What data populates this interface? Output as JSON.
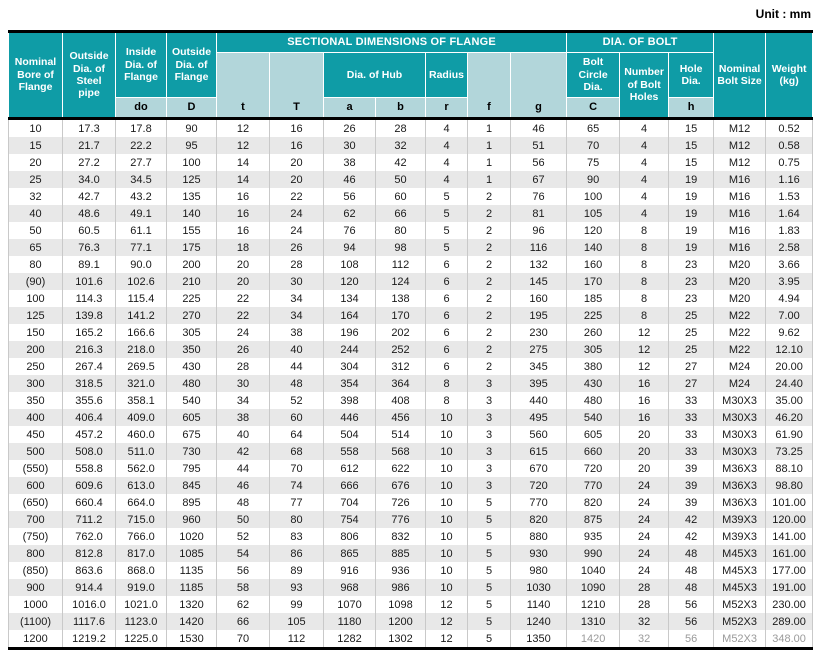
{
  "unit_label": "Unit : mm",
  "colors": {
    "header_dark_teal": "#0f9ca6",
    "header_light_teal": "#b2d6da",
    "row_alternate_gray": "#e8e8e8",
    "grid_line": "#c9c9c9",
    "rule_black": "#000000"
  },
  "header": {
    "nominal_bore": "Nominal Bore of Flange",
    "outside_dia_steel_pipe": "Outside Dia. of Steel pipe",
    "inside_dia_flange": "Inside Dia. of Flange",
    "outside_dia_flange": "Outside Dia. of Flange",
    "sectional_group": "SECTIONAL DIMENSIONS OF FLANGE",
    "dia_of_bolt_group": "DIA. OF BOLT",
    "dia_of_hub": "Dia. of Hub",
    "radius": "Radius",
    "bolt_circle_dia": "Bolt Circle Dia.",
    "number_of_bolt_holes": "Number of Bolt Holes",
    "hole_dia": "Hole Dia.",
    "nominal_bolt_size": "Nominal Bolt Size",
    "weight_kg": "Weight (kg)",
    "sub": {
      "do": "do",
      "D": "D",
      "t": "t",
      "T": "T",
      "a": "a",
      "b": "b",
      "r": "r",
      "f": "f",
      "g": "g",
      "C": "C",
      "h": "h"
    }
  },
  "columns": [
    "nominal_bore",
    "outside_dia_steel_pipe",
    "do",
    "D",
    "t",
    "T",
    "a",
    "b",
    "r",
    "f",
    "g",
    "C",
    "number_of_bolt_holes",
    "h",
    "nominal_bolt_size",
    "weight_kg"
  ],
  "rows": [
    [
      "10",
      "17.3",
      "17.8",
      "90",
      "12",
      "16",
      "26",
      "28",
      "4",
      "1",
      "46",
      "65",
      "4",
      "15",
      "M12",
      "0.52"
    ],
    [
      "15",
      "21.7",
      "22.2",
      "95",
      "12",
      "16",
      "30",
      "32",
      "4",
      "1",
      "51",
      "70",
      "4",
      "15",
      "M12",
      "0.58"
    ],
    [
      "20",
      "27.2",
      "27.7",
      "100",
      "14",
      "20",
      "38",
      "42",
      "4",
      "1",
      "56",
      "75",
      "4",
      "15",
      "M12",
      "0.75"
    ],
    [
      "25",
      "34.0",
      "34.5",
      "125",
      "14",
      "20",
      "46",
      "50",
      "4",
      "1",
      "67",
      "90",
      "4",
      "19",
      "M16",
      "1.16"
    ],
    [
      "32",
      "42.7",
      "43.2",
      "135",
      "16",
      "22",
      "56",
      "60",
      "5",
      "2",
      "76",
      "100",
      "4",
      "19",
      "M16",
      "1.53"
    ],
    [
      "40",
      "48.6",
      "49.1",
      "140",
      "16",
      "24",
      "62",
      "66",
      "5",
      "2",
      "81",
      "105",
      "4",
      "19",
      "M16",
      "1.64"
    ],
    [
      "50",
      "60.5",
      "61.1",
      "155",
      "16",
      "24",
      "76",
      "80",
      "5",
      "2",
      "96",
      "120",
      "8",
      "19",
      "M16",
      "1.83"
    ],
    [
      "65",
      "76.3",
      "77.1",
      "175",
      "18",
      "26",
      "94",
      "98",
      "5",
      "2",
      "116",
      "140",
      "8",
      "19",
      "M16",
      "2.58"
    ],
    [
      "80",
      "89.1",
      "90.0",
      "200",
      "20",
      "28",
      "108",
      "112",
      "6",
      "2",
      "132",
      "160",
      "8",
      "23",
      "M20",
      "3.66"
    ],
    [
      "(90)",
      "101.6",
      "102.6",
      "210",
      "20",
      "30",
      "120",
      "124",
      "6",
      "2",
      "145",
      "170",
      "8",
      "23",
      "M20",
      "3.95"
    ],
    [
      "100",
      "114.3",
      "115.4",
      "225",
      "22",
      "34",
      "134",
      "138",
      "6",
      "2",
      "160",
      "185",
      "8",
      "23",
      "M20",
      "4.94"
    ],
    [
      "125",
      "139.8",
      "141.2",
      "270",
      "22",
      "34",
      "164",
      "170",
      "6",
      "2",
      "195",
      "225",
      "8",
      "25",
      "M22",
      "7.00"
    ],
    [
      "150",
      "165.2",
      "166.6",
      "305",
      "24",
      "38",
      "196",
      "202",
      "6",
      "2",
      "230",
      "260",
      "12",
      "25",
      "M22",
      "9.62"
    ],
    [
      "200",
      "216.3",
      "218.0",
      "350",
      "26",
      "40",
      "244",
      "252",
      "6",
      "2",
      "275",
      "305",
      "12",
      "25",
      "M22",
      "12.10"
    ],
    [
      "250",
      "267.4",
      "269.5",
      "430",
      "28",
      "44",
      "304",
      "312",
      "6",
      "2",
      "345",
      "380",
      "12",
      "27",
      "M24",
      "20.00"
    ],
    [
      "300",
      "318.5",
      "321.0",
      "480",
      "30",
      "48",
      "354",
      "364",
      "8",
      "3",
      "395",
      "430",
      "16",
      "27",
      "M24",
      "24.40"
    ],
    [
      "350",
      "355.6",
      "358.1",
      "540",
      "34",
      "52",
      "398",
      "408",
      "8",
      "3",
      "440",
      "480",
      "16",
      "33",
      "M30X3",
      "35.00"
    ],
    [
      "400",
      "406.4",
      "409.0",
      "605",
      "38",
      "60",
      "446",
      "456",
      "10",
      "3",
      "495",
      "540",
      "16",
      "33",
      "M30X3",
      "46.20"
    ],
    [
      "450",
      "457.2",
      "460.0",
      "675",
      "40",
      "64",
      "504",
      "514",
      "10",
      "3",
      "560",
      "605",
      "20",
      "33",
      "M30X3",
      "61.90"
    ],
    [
      "500",
      "508.0",
      "511.0",
      "730",
      "42",
      "68",
      "558",
      "568",
      "10",
      "3",
      "615",
      "660",
      "20",
      "33",
      "M30X3",
      "73.25"
    ],
    [
      "(550)",
      "558.8",
      "562.0",
      "795",
      "44",
      "70",
      "612",
      "622",
      "10",
      "3",
      "670",
      "720",
      "20",
      "39",
      "M36X3",
      "88.10"
    ],
    [
      "600",
      "609.6",
      "613.0",
      "845",
      "46",
      "74",
      "666",
      "676",
      "10",
      "3",
      "720",
      "770",
      "24",
      "39",
      "M36X3",
      "98.80"
    ],
    [
      "(650)",
      "660.4",
      "664.0",
      "895",
      "48",
      "77",
      "704",
      "726",
      "10",
      "5",
      "770",
      "820",
      "24",
      "39",
      "M36X3",
      "101.00"
    ],
    [
      "700",
      "711.2",
      "715.0",
      "960",
      "50",
      "80",
      "754",
      "776",
      "10",
      "5",
      "820",
      "875",
      "24",
      "42",
      "M39X3",
      "120.00"
    ],
    [
      "(750)",
      "762.0",
      "766.0",
      "1020",
      "52",
      "83",
      "806",
      "832",
      "10",
      "5",
      "880",
      "935",
      "24",
      "42",
      "M39X3",
      "141.00"
    ],
    [
      "800",
      "812.8",
      "817.0",
      "1085",
      "54",
      "86",
      "865",
      "885",
      "10",
      "5",
      "930",
      "990",
      "24",
      "48",
      "M45X3",
      "161.00"
    ],
    [
      "(850)",
      "863.6",
      "868.0",
      "1135",
      "56",
      "89",
      "916",
      "936",
      "10",
      "5",
      "980",
      "1040",
      "24",
      "48",
      "M45X3",
      "177.00"
    ],
    [
      "900",
      "914.4",
      "919.0",
      "1185",
      "58",
      "93",
      "968",
      "986",
      "10",
      "5",
      "1030",
      "1090",
      "28",
      "48",
      "M45X3",
      "191.00"
    ],
    [
      "1000",
      "1016.0",
      "1021.0",
      "1320",
      "62",
      "99",
      "1070",
      "1098",
      "12",
      "5",
      "1140",
      "1210",
      "28",
      "56",
      "M52X3",
      "230.00"
    ],
    [
      "(1100)",
      "1117.6",
      "1123.0",
      "1420",
      "66",
      "105",
      "1180",
      "1200",
      "12",
      "5",
      "1240",
      "1310",
      "32",
      "56",
      "M52X3",
      "289.00"
    ],
    [
      "1200",
      "1219.2",
      "1225.0",
      "1530",
      "70",
      "112",
      "1282",
      "1302",
      "12",
      "5",
      "1350",
      "1420",
      "32",
      "56",
      "M52X3",
      "348.00"
    ]
  ]
}
